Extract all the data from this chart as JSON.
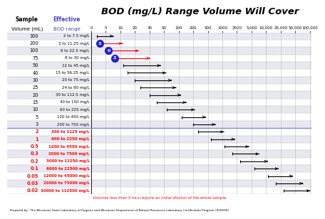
{
  "title": "BOD (mg/L) Range Volume Will Cover",
  "footer": "Volumes less than 3 mLs require an initial dilution of the whole sample.",
  "prepared_by": "Prepared by:  The Wisconsin State Laboratory of Hygiene and Wisconsin Department of Natural Resources Laboratory Certification Program (9/28/99)",
  "rows": [
    {
      "vol": "300",
      "bod": "2 to 7.5 mg/L",
      "low": 2,
      "high": 7.5,
      "color": "black",
      "label_color": "black"
    },
    {
      "vol": "200",
      "bod": "3 to 11.25 mg/L",
      "low": 3,
      "high": 11.25,
      "color": "red",
      "label_color": "black",
      "circle": "3",
      "circle_color": "#2222cc"
    },
    {
      "vol": "100",
      "bod": "6 to 22.5 mg/L",
      "low": 6,
      "high": 22.5,
      "color": "red",
      "label_color": "black",
      "circle": "0",
      "circle_color": "#2222cc"
    },
    {
      "vol": "75",
      "bod": "8 to 30 mg/L",
      "low": 8,
      "high": 30,
      "color": "red",
      "label_color": "black",
      "circle": "2",
      "circle_color": "#2222cc"
    },
    {
      "vol": "50",
      "bod": "12 to 45 mg/L",
      "low": 12,
      "high": 45,
      "color": "black",
      "label_color": "black"
    },
    {
      "vol": "40",
      "bod": "15 to 56.25 mg/L",
      "low": 15,
      "high": 56.25,
      "color": "black",
      "label_color": "black"
    },
    {
      "vol": "30",
      "bod": "20 to 75 mg/L",
      "low": 20,
      "high": 75,
      "color": "black",
      "label_color": "black"
    },
    {
      "vol": "25",
      "bod": "24 to 90 mg/L",
      "low": 24,
      "high": 90,
      "color": "black",
      "label_color": "black"
    },
    {
      "vol": "20",
      "bod": "30 to 112.5 mg/L",
      "low": 30,
      "high": 112.5,
      "color": "black",
      "label_color": "black"
    },
    {
      "vol": "15",
      "bod": "40 to 150 mg/L",
      "low": 40,
      "high": 150,
      "color": "black",
      "label_color": "black"
    },
    {
      "vol": "10",
      "bod": "60 to 225 mg/L",
      "low": 60,
      "high": 225,
      "color": "black",
      "label_color": "black"
    },
    {
      "vol": "5",
      "bod": "120 to 450 mg/L",
      "low": 120,
      "high": 450,
      "color": "black",
      "label_color": "black"
    },
    {
      "vol": "3",
      "bod": "200 to 750 mg/L",
      "low": 200,
      "high": 750,
      "color": "black",
      "label_color": "black"
    },
    {
      "vol": "2",
      "bod": "300 to 1125 mg/L",
      "low": 300,
      "high": 1125,
      "color": "black",
      "label_color": "red"
    },
    {
      "vol": "1",
      "bod": "600 to 2250 mg/L",
      "low": 600,
      "high": 2250,
      "color": "black",
      "label_color": "red"
    },
    {
      "vol": "0.5",
      "bod": "1200 to 4500 mg/L",
      "low": 1200,
      "high": 4500,
      "color": "black",
      "label_color": "red"
    },
    {
      "vol": "0.3",
      "bod": "2000 to 7500 mg/L",
      "low": 2000,
      "high": 7500,
      "color": "black",
      "label_color": "red"
    },
    {
      "vol": "0.2",
      "bod": "3000 to 11250 mg/L",
      "low": 3000,
      "high": 11250,
      "color": "black",
      "label_color": "red"
    },
    {
      "vol": "0.1",
      "bod": "6000 to 22500 mg/L",
      "low": 6000,
      "high": 22500,
      "color": "black",
      "label_color": "red"
    },
    {
      "vol": "0.05",
      "bod": "12000 to 45000 mg/L",
      "low": 12000,
      "high": 45000,
      "color": "black",
      "label_color": "red"
    },
    {
      "vol": "0.03",
      "bod": "20000 to 75000 mg/L",
      "low": 20000,
      "high": 75000,
      "color": "black",
      "label_color": "red"
    },
    {
      "vol": "0.02",
      "bod": "30000 to 112500 mg/L",
      "low": 30000,
      "high": 112500,
      "color": "black",
      "label_color": "red"
    }
  ],
  "x_ticks": [
    0,
    5,
    10,
    20,
    30,
    50,
    100,
    200,
    500,
    1000,
    2500,
    5000,
    10000,
    25000,
    50000,
    100000
  ],
  "x_tick_labels": [
    "0",
    "5",
    "10",
    "20",
    "30",
    "50",
    "100",
    "200",
    "500",
    "1000",
    "2500",
    "5,000",
    "10,000",
    "25,000",
    "50,000",
    "100,000"
  ],
  "separator_after_row": 12,
  "header_color": "#4444cc",
  "row_even_bg": "#e8e8f0",
  "row_odd_bg": "#ffffff",
  "separator_color": "#7799cc",
  "grid_color": "#bbbbbb"
}
